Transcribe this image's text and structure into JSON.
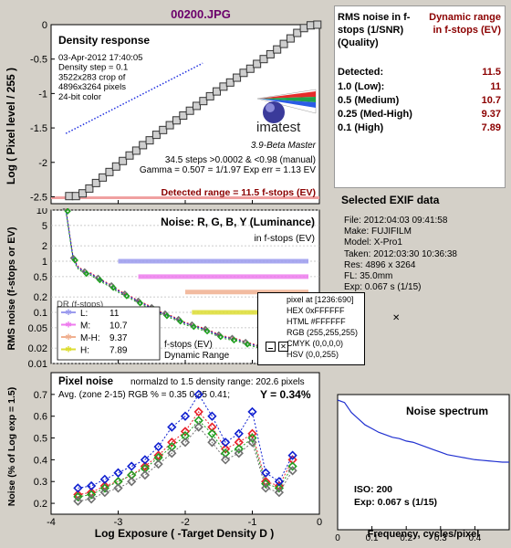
{
  "file_title": "00200.JPG",
  "density": {
    "title": "Density response",
    "info": [
      "03-Apr-2012 17:40:05",
      "Density step = 0.1",
      "3522x283 crop of",
      "4896x3264 pixels",
      "24-bit color"
    ],
    "logo": "imatest",
    "version": "3.9-Beta  Master",
    "stats": [
      "34.5 steps >0.0002 & <0.98 (manual)",
      "Gamma = 0.507 = 1/1.97  Exp err = 1.13 EV"
    ],
    "detected_range": "Detected range = 11.5 f-stops (EV)",
    "ylabel": "Log ( Pixel level / 255 )"
  },
  "noise": {
    "title": "Noise: R, G, B, Y (Luminance)",
    "subtitle": "in f-stops (EV)",
    "ylabel": "RMS noise (f-stops or EV)",
    "behind_labels": [
      "DR (f-stops)",
      "f-stops (EV)",
      "Dynamic Range"
    ],
    "legend": [
      {
        "key": "L:",
        "value": "11",
        "color": "#9b9bee"
      },
      {
        "key": "M:",
        "value": "10.7",
        "color": "#ee7cee"
      },
      {
        "key": "M-H:",
        "value": "9.37",
        "color": "#f0b090"
      },
      {
        "key": "H:",
        "value": "7.89",
        "color": "#dddd33"
      }
    ]
  },
  "pixel_popup": {
    "title": "pixel at [1236:690]",
    "lines": [
      "HEX 0xFFFFFF",
      "HTML #FFFFFF",
      "RGB (255,255,255)",
      "CMYK (0,0,0,0)",
      "HSV (0,0,255)"
    ],
    "icons": [
      "minimize-icon",
      "close-icon"
    ]
  },
  "pixel_noise": {
    "title": "Pixel noise",
    "subtitle": "normalzd to 1.5 density range: 202.6 pixels",
    "avg": "Avg. (zone 2-15) RGB % = 0.35  0.35  0.41;",
    "y": "Y = 0.34%",
    "ylabel": "Noise (% of Log exp = 1.5)",
    "xlabel": "Log Exposure ( -Target Density D )"
  },
  "spectrum": {
    "title": "Noise spectrum",
    "iso": "ISO:   200",
    "exp": "Exp:   0.067 s    (1/15)",
    "xlabel": "Frequency, cycles/pixel"
  },
  "rms": {
    "header_left": "RMS noise in f-stops (1/SNR) (Quality)",
    "header_right": "Dynamic range in f-stops (EV)",
    "rows": [
      {
        "label": "Detected:",
        "value": "11.5"
      },
      {
        "label": "1.0   (Low):",
        "value": "11"
      },
      {
        "label": "0.5   (Medium)",
        "value": "10.7"
      },
      {
        "label": "0.25 (Med-High)",
        "value": "9.37"
      },
      {
        "label": "0.1   (High)",
        "value": "7.89"
      }
    ]
  },
  "exif": {
    "title": "Selected EXIF data",
    "lines": [
      "File:  2012:04:03 09:41:58",
      "Make:  FUJIFILM",
      "Model: X-Pro1",
      "Taken:  2012:03:30 10:36:38",
      "Res:    4896 x 3264",
      "FL:  35.0mm",
      "Exp:   0.067 s   (1/15)"
    ]
  },
  "colors": {
    "r": "#e8202a",
    "g": "#20a020",
    "b": "#1020d0",
    "y": "#707070",
    "density_line": "#2030e0",
    "spectrum": "#2030d0",
    "detected_text": "#8b0000",
    "title_text": "#6b006b"
  },
  "chart_data": [
    {
      "type": "line",
      "title": "Density response",
      "xlabel": "",
      "ylabel": "Log ( Pixel level / 255 )",
      "xlim": [
        -4,
        0
      ],
      "ylim": [
        -2.6,
        0
      ],
      "xticks": [
        "-4",
        "-3",
        "-2",
        "-1",
        "0"
      ],
      "yticks": [
        "0",
        "-0.5",
        "-1",
        "-1.5",
        "-2",
        "-2.5"
      ],
      "series": [
        {
          "values": [
            [
              -3.73,
              -2.49
            ],
            [
              -3.63,
              -2.49
            ],
            [
              -3.53,
              -2.45
            ],
            [
              -3.43,
              -2.38
            ],
            [
              -3.33,
              -2.3
            ],
            [
              -3.23,
              -2.22
            ],
            [
              -3.13,
              -2.14
            ],
            [
              -3.03,
              -2.06
            ],
            [
              -2.93,
              -1.98
            ],
            [
              -2.83,
              -1.9
            ],
            [
              -2.73,
              -1.83
            ],
            [
              -2.63,
              -1.75
            ],
            [
              -2.53,
              -1.68
            ],
            [
              -2.43,
              -1.6
            ],
            [
              -2.33,
              -1.53
            ],
            [
              -2.23,
              -1.46
            ],
            [
              -2.13,
              -1.39
            ],
            [
              -2.03,
              -1.32
            ],
            [
              -1.93,
              -1.25
            ],
            [
              -1.83,
              -1.18
            ],
            [
              -1.73,
              -1.11
            ],
            [
              -1.63,
              -1.04
            ],
            [
              -1.53,
              -0.97
            ],
            [
              -1.43,
              -0.9
            ],
            [
              -1.33,
              -0.84
            ],
            [
              -1.23,
              -0.77
            ],
            [
              -1.13,
              -0.7
            ],
            [
              -1.03,
              -0.64
            ],
            [
              -0.93,
              -0.57
            ],
            [
              -0.83,
              -0.5
            ],
            [
              -0.73,
              -0.43
            ],
            [
              -0.63,
              -0.36
            ],
            [
              -0.53,
              -0.28
            ],
            [
              -0.43,
              -0.2
            ],
            [
              -0.33,
              -0.12
            ],
            [
              -0.23,
              -0.05
            ],
            [
              -0.13,
              -0.01
            ],
            [
              -0.03,
              0
            ]
          ]
        },
        {
          "values": [
            [
              -3.78,
              -1.58
            ],
            [
              -3.1,
              -1.24
            ],
            [
              -2.42,
              -0.9
            ],
            [
              -1.74,
              -0.56
            ]
          ]
        }
      ]
    },
    {
      "type": "line",
      "title": "Noise: R, G, B, Y (Luminance)",
      "subtitle": "in f-stops (EV)",
      "ylabel": "RMS noise (f-stops or EV)",
      "yscale": "log",
      "ylim": [
        0.01,
        10
      ],
      "xlim": [
        -4,
        0
      ],
      "yticks": [
        "10",
        "5",
        "2",
        "1",
        "0.5",
        "0.2",
        "0.1",
        "0.05",
        "0.02",
        "0.01"
      ],
      "reference_lines": [
        {
          "y": 1,
          "x_from": -3.0,
          "color": "#9b9bee"
        },
        {
          "y": 0.5,
          "x_from": -2.7,
          "color": "#ee7cee"
        },
        {
          "y": 0.25,
          "x_from": -2.0,
          "color": "#f0b090"
        },
        {
          "y": 0.1,
          "x_from": -1.9,
          "color": "#dddd33"
        }
      ],
      "series": [
        {
          "values": [
            [
              -3.78,
              10
            ],
            [
              -3.72,
              3
            ],
            [
              -3.67,
              1.1
            ],
            [
              -3.6,
              0.75
            ],
            [
              -3.5,
              0.6
            ],
            [
              -3.4,
              0.55
            ],
            [
              -3.3,
              0.45
            ],
            [
              -3.2,
              0.38
            ],
            [
              -3.1,
              0.32
            ],
            [
              -3.0,
              0.26
            ],
            [
              -2.9,
              0.22
            ],
            [
              -2.8,
              0.19
            ],
            [
              -2.7,
              0.16
            ],
            [
              -2.6,
              0.14
            ],
            [
              -2.5,
              0.12
            ],
            [
              -2.4,
              0.1
            ],
            [
              -2.3,
              0.09
            ],
            [
              -2.2,
              0.08
            ],
            [
              -2.1,
              0.07
            ],
            [
              -2.0,
              0.06
            ],
            [
              -1.9,
              0.055
            ],
            [
              -1.8,
              0.05
            ],
            [
              -1.7,
              0.045
            ],
            [
              -1.6,
              0.04
            ],
            [
              -1.5,
              0.035
            ],
            [
              -1.4,
              0.032
            ],
            [
              -1.3,
              0.03
            ],
            [
              -1.2,
              0.028
            ],
            [
              -1.1,
              0.025
            ],
            [
              -1.0,
              0.023
            ],
            [
              -0.9,
              0.021
            ],
            [
              -0.8,
              0.02
            ],
            [
              -0.7,
              0.022
            ],
            [
              -0.6,
              0.025
            ],
            [
              -0.5,
              0.028
            ],
            [
              -0.4,
              0.03
            ]
          ]
        }
      ]
    },
    {
      "type": "scatter",
      "title": "Pixel noise",
      "xlabel": "Log Exposure ( -Target Density D )",
      "ylabel": "Noise (% of Log exp = 1.5)",
      "xlim": [
        -4,
        0
      ],
      "ylim": [
        0.15,
        0.8
      ],
      "xticks": [
        "-4",
        "-3",
        "-2",
        "-1",
        "0"
      ],
      "yticks": [
        "0.2",
        "0.3",
        "0.4",
        "0.5",
        "0.6",
        "0.7"
      ],
      "series": [
        {
          "name": "R",
          "values": [
            [
              -3.6,
              0.24
            ],
            [
              -3.4,
              0.25
            ],
            [
              -3.2,
              0.28
            ],
            [
              -3.0,
              0.3
            ],
            [
              -2.8,
              0.33
            ],
            [
              -2.6,
              0.37
            ],
            [
              -2.4,
              0.42
            ],
            [
              -2.2,
              0.48
            ],
            [
              -2.0,
              0.53
            ],
            [
              -1.8,
              0.62
            ],
            [
              -1.6,
              0.55
            ],
            [
              -1.4,
              0.45
            ],
            [
              -1.2,
              0.48
            ],
            [
              -1.0,
              0.52
            ],
            [
              -0.8,
              0.3
            ],
            [
              -0.6,
              0.28
            ],
            [
              -0.4,
              0.4
            ]
          ]
        },
        {
          "name": "G",
          "values": [
            [
              -3.6,
              0.23
            ],
            [
              -3.4,
              0.24
            ],
            [
              -3.2,
              0.27
            ],
            [
              -3.0,
              0.3
            ],
            [
              -2.8,
              0.33
            ],
            [
              -2.6,
              0.36
            ],
            [
              -2.4,
              0.41
            ],
            [
              -2.2,
              0.46
            ],
            [
              -2.0,
              0.51
            ],
            [
              -1.8,
              0.58
            ],
            [
              -1.6,
              0.52
            ],
            [
              -1.4,
              0.43
            ],
            [
              -1.2,
              0.45
            ],
            [
              -1.0,
              0.5
            ],
            [
              -0.8,
              0.29
            ],
            [
              -0.6,
              0.27
            ],
            [
              -0.4,
              0.37
            ]
          ]
        },
        {
          "name": "B",
          "values": [
            [
              -3.6,
              0.27
            ],
            [
              -3.4,
              0.28
            ],
            [
              -3.2,
              0.31
            ],
            [
              -3.0,
              0.34
            ],
            [
              -2.8,
              0.37
            ],
            [
              -2.6,
              0.4
            ],
            [
              -2.4,
              0.46
            ],
            [
              -2.2,
              0.55
            ],
            [
              -2.0,
              0.6
            ],
            [
              -1.8,
              0.7
            ],
            [
              -1.6,
              0.6
            ],
            [
              -1.4,
              0.48
            ],
            [
              -1.2,
              0.52
            ],
            [
              -1.0,
              0.62
            ],
            [
              -0.8,
              0.34
            ],
            [
              -0.6,
              0.3
            ],
            [
              -0.4,
              0.42
            ]
          ]
        },
        {
          "name": "Y",
          "values": [
            [
              -3.6,
              0.21
            ],
            [
              -3.4,
              0.22
            ],
            [
              -3.2,
              0.25
            ],
            [
              -3.0,
              0.27
            ],
            [
              -2.8,
              0.3
            ],
            [
              -2.6,
              0.33
            ],
            [
              -2.4,
              0.38
            ],
            [
              -2.2,
              0.43
            ],
            [
              -2.0,
              0.48
            ],
            [
              -1.8,
              0.55
            ],
            [
              -1.6,
              0.48
            ],
            [
              -1.4,
              0.4
            ],
            [
              -1.2,
              0.43
            ],
            [
              -1.0,
              0.48
            ],
            [
              -0.8,
              0.27
            ],
            [
              -0.6,
              0.25
            ],
            [
              -0.4,
              0.35
            ]
          ]
        }
      ]
    },
    {
      "type": "line",
      "title": "Noise spectrum",
      "xlabel": "Frequency, cycles/pixel",
      "xlim": [
        0,
        0.5
      ],
      "xticks": [
        "0",
        "0.1",
        "0.2",
        "0.3",
        "0.4"
      ],
      "series": [
        {
          "values": [
            [
              0,
              1.0
            ],
            [
              0.02,
              0.98
            ],
            [
              0.04,
              0.9
            ],
            [
              0.06,
              0.85
            ],
            [
              0.08,
              0.8
            ],
            [
              0.1,
              0.77
            ],
            [
              0.12,
              0.74
            ],
            [
              0.14,
              0.72
            ],
            [
              0.16,
              0.7
            ],
            [
              0.18,
              0.69
            ],
            [
              0.2,
              0.67
            ],
            [
              0.22,
              0.66
            ],
            [
              0.24,
              0.64
            ],
            [
              0.26,
              0.62
            ],
            [
              0.28,
              0.6
            ],
            [
              0.3,
              0.58
            ],
            [
              0.32,
              0.56
            ],
            [
              0.34,
              0.55
            ],
            [
              0.36,
              0.54
            ],
            [
              0.38,
              0.53
            ],
            [
              0.4,
              0.52
            ],
            [
              0.42,
              0.515
            ],
            [
              0.44,
              0.51
            ],
            [
              0.46,
              0.505
            ],
            [
              0.48,
              0.5
            ],
            [
              0.5,
              0.5
            ]
          ]
        }
      ]
    }
  ]
}
